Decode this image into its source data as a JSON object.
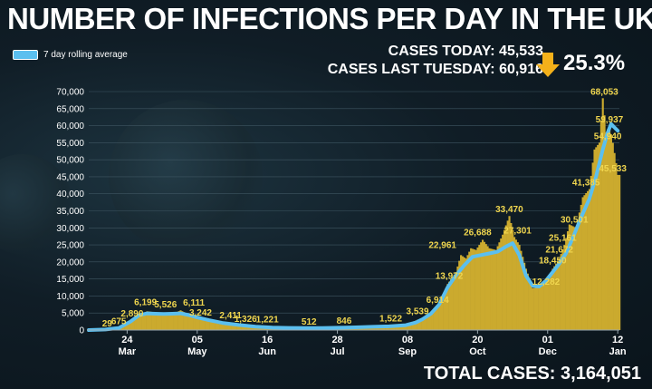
{
  "header": {
    "title": "NUMBER OF INFECTIONS PER DAY IN THE UK",
    "legend_label": "7 day rolling average",
    "cases_today": "CASES TODAY: 45,533",
    "cases_last_tuesday": "CASES LAST TUESDAY: 60,916",
    "change_pct": "25.3%",
    "total_cases": "TOTAL CASES: 3,164,051"
  },
  "colors": {
    "bars": "#cbaa2e",
    "line": "#5bbfef",
    "labels": "#f0d64f",
    "arrow": "#f4b11a"
  },
  "chart_data": {
    "type": "bar",
    "title": "NUMBER OF INFECTIONS PER DAY IN THE UK",
    "ylim": [
      0,
      70000
    ],
    "yticks": [
      "0",
      "5,000",
      "10,000",
      "15,000",
      "20,000",
      "25,000",
      "30,000",
      "35,000",
      "40,000",
      "45,000",
      "50,000",
      "55,000",
      "60,000",
      "65,000",
      "70,000"
    ],
    "xticks": [
      {
        "day": 23,
        "day_label": "24",
        "month": "Mar"
      },
      {
        "day": 65,
        "day_label": "05",
        "month": "May"
      },
      {
        "day": 107,
        "day_label": "16",
        "month": "Jun"
      },
      {
        "day": 149,
        "day_label": "28",
        "month": "Jul"
      },
      {
        "day": 191,
        "day_label": "08",
        "month": "Sep"
      },
      {
        "day": 233,
        "day_label": "20",
        "month": "Oct"
      },
      {
        "day": 275,
        "day_label": "01",
        "month": "Dec"
      },
      {
        "day": 317,
        "day_label": "12",
        "month": "Jan"
      }
    ],
    "day_range": [
      0,
      318
    ],
    "daily_points": [
      [
        0,
        0
      ],
      [
        10,
        100
      ],
      [
        20,
        650
      ],
      [
        25,
        2500
      ],
      [
        30,
        4000
      ],
      [
        35,
        5500
      ],
      [
        40,
        5200
      ],
      [
        45,
        5000
      ],
      [
        50,
        4600
      ],
      [
        55,
        5800
      ],
      [
        60,
        4500
      ],
      [
        65,
        3800
      ],
      [
        70,
        3000
      ],
      [
        75,
        2200
      ],
      [
        80,
        1600
      ],
      [
        90,
        1200
      ],
      [
        100,
        900
      ],
      [
        110,
        700
      ],
      [
        120,
        600
      ],
      [
        130,
        500
      ],
      [
        140,
        550
      ],
      [
        150,
        700
      ],
      [
        160,
        850
      ],
      [
        170,
        1000
      ],
      [
        180,
        1100
      ],
      [
        190,
        1500
      ],
      [
        196,
        2800
      ],
      [
        200,
        3600
      ],
      [
        205,
        5000
      ],
      [
        210,
        7200
      ],
      [
        215,
        13500
      ],
      [
        220,
        17000
      ],
      [
        223,
        22000
      ],
      [
        226,
        21000
      ],
      [
        229,
        24000
      ],
      [
        232,
        23500
      ],
      [
        236,
        26500
      ],
      [
        240,
        24000
      ],
      [
        244,
        23500
      ],
      [
        248,
        28000
      ],
      [
        252,
        33470
      ],
      [
        255,
        27301
      ],
      [
        258,
        25000
      ],
      [
        262,
        18000
      ],
      [
        266,
        12282
      ],
      [
        270,
        12500
      ],
      [
        274,
        14000
      ],
      [
        278,
        18000
      ],
      [
        282,
        21000
      ],
      [
        285,
        25000
      ],
      [
        288,
        31000
      ],
      [
        292,
        30000
      ],
      [
        296,
        39000
      ],
      [
        300,
        41385
      ],
      [
        303,
        53000
      ],
      [
        306,
        55000
      ],
      [
        308,
        68053
      ],
      [
        310,
        58000
      ],
      [
        312,
        59937
      ],
      [
        314,
        54940
      ],
      [
        316,
        49000
      ],
      [
        317,
        45533
      ]
    ],
    "series": [
      {
        "name": "7 day rolling average",
        "type": "line",
        "points": [
          [
            0,
            0
          ],
          [
            10,
            150
          ],
          [
            18,
            600
          ],
          [
            25,
            2500
          ],
          [
            30,
            4300
          ],
          [
            35,
            4900
          ],
          [
            40,
            4800
          ],
          [
            45,
            4700
          ],
          [
            50,
            4800
          ],
          [
            55,
            4900
          ],
          [
            60,
            4400
          ],
          [
            65,
            3700
          ],
          [
            72,
            2900
          ],
          [
            80,
            2100
          ],
          [
            90,
            1500
          ],
          [
            100,
            1000
          ],
          [
            110,
            750
          ],
          [
            120,
            650
          ],
          [
            130,
            600
          ],
          [
            140,
            600
          ],
          [
            150,
            700
          ],
          [
            160,
            800
          ],
          [
            170,
            950
          ],
          [
            180,
            1100
          ],
          [
            190,
            1450
          ],
          [
            196,
            2200
          ],
          [
            200,
            3200
          ],
          [
            205,
            4800
          ],
          [
            210,
            7500
          ],
          [
            215,
            12500
          ],
          [
            220,
            16000
          ],
          [
            225,
            19000
          ],
          [
            230,
            21500
          ],
          [
            235,
            22000
          ],
          [
            240,
            22500
          ],
          [
            245,
            23000
          ],
          [
            250,
            24500
          ],
          [
            254,
            25500
          ],
          [
            258,
            22000
          ],
          [
            262,
            16000
          ],
          [
            266,
            13000
          ],
          [
            270,
            12800
          ],
          [
            274,
            14500
          ],
          [
            278,
            17000
          ],
          [
            282,
            19500
          ],
          [
            286,
            22500
          ],
          [
            290,
            27000
          ],
          [
            295,
            33000
          ],
          [
            300,
            38500
          ],
          [
            304,
            45000
          ],
          [
            308,
            53000
          ],
          [
            311,
            58000
          ],
          [
            313,
            60500
          ],
          [
            315,
            59500
          ],
          [
            317,
            58500
          ]
        ]
      }
    ],
    "data_labels": [
      {
        "day": 11,
        "value": 29,
        "text": "29"
      },
      {
        "day": 18,
        "value": 675,
        "text": "675"
      },
      {
        "day": 26,
        "value": 2890,
        "text": "2,890"
      },
      {
        "day": 34,
        "value": 6199,
        "text": "6,199"
      },
      {
        "day": 46,
        "value": 5526,
        "text": "5,526"
      },
      {
        "day": 63,
        "value": 6111,
        "text": "6,111"
      },
      {
        "day": 67,
        "value": 3242,
        "text": "3,242"
      },
      {
        "day": 85,
        "value": 2411,
        "text": "2,411"
      },
      {
        "day": 94,
        "value": 1326,
        "text": "1,326"
      },
      {
        "day": 107,
        "value": 1221,
        "text": "1,221"
      },
      {
        "day": 132,
        "value": 512,
        "text": "512"
      },
      {
        "day": 153,
        "value": 846,
        "text": "846"
      },
      {
        "day": 181,
        "value": 1522,
        "text": "1,522"
      },
      {
        "day": 197,
        "value": 3539,
        "text": "3,539"
      },
      {
        "day": 209,
        "value": 6914,
        "text": "6,914"
      },
      {
        "day": 216,
        "value": 13972,
        "text": "13,972"
      },
      {
        "day": 212,
        "value": 22961,
        "text": "22,961"
      },
      {
        "day": 233,
        "value": 26688,
        "text": "26,688"
      },
      {
        "day": 252,
        "value": 33470,
        "text": "33,470"
      },
      {
        "day": 257,
        "value": 27301,
        "text": "27,301"
      },
      {
        "day": 274,
        "value": 12282,
        "text": "12,282"
      },
      {
        "day": 278,
        "value": 18450,
        "text": "18,450"
      },
      {
        "day": 282,
        "value": 21672,
        "text": "21,672"
      },
      {
        "day": 284,
        "value": 25161,
        "text": "25,161"
      },
      {
        "day": 291,
        "value": 30501,
        "text": "30,501"
      },
      {
        "day": 298,
        "value": 41385,
        "text": "41,385"
      },
      {
        "day": 309,
        "value": 68053,
        "text": "68,053"
      },
      {
        "day": 312,
        "value": 59937,
        "text": "59,937"
      },
      {
        "day": 311,
        "value": 54940,
        "text": "54,940"
      },
      {
        "day": 314,
        "value": 45533,
        "text": "45,533"
      }
    ]
  }
}
